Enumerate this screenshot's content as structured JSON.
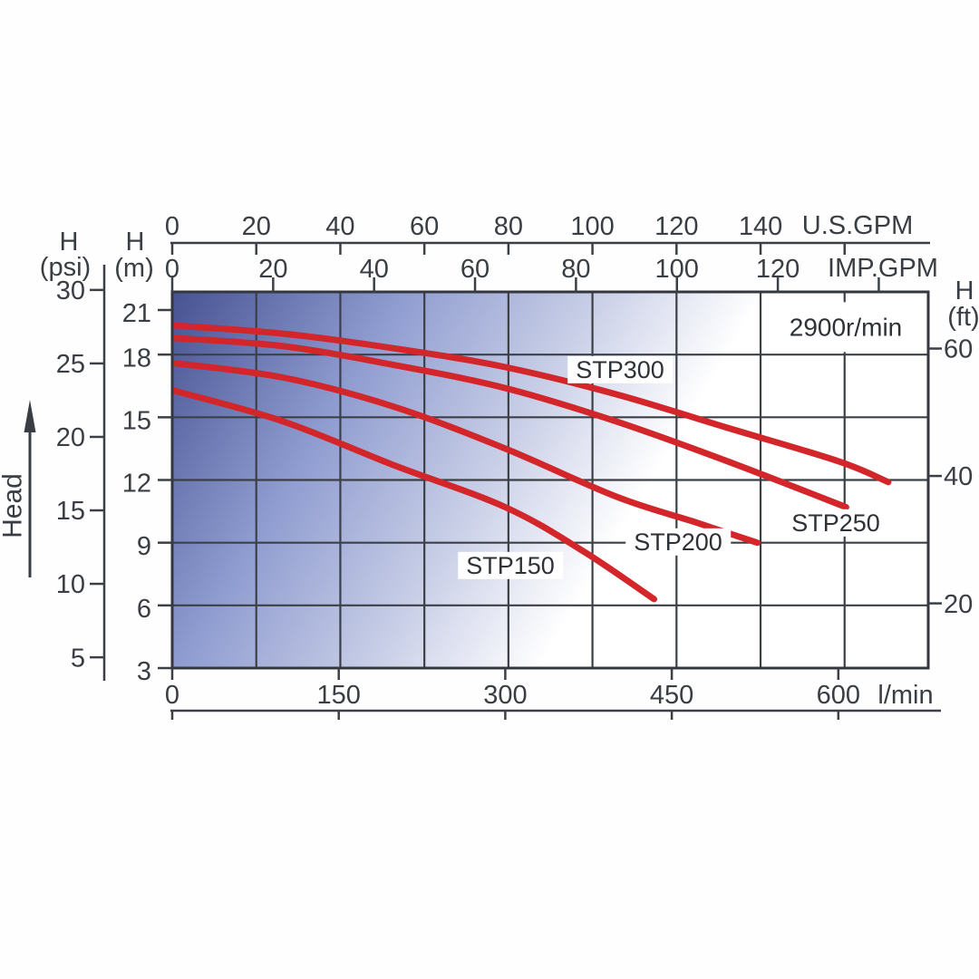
{
  "chart_data": {
    "type": "line",
    "annotations": [
      "2900r/min"
    ],
    "y_label": "Head",
    "grid": {
      "vertical_every_usgpm": 20,
      "horizontal_every_m": 3
    },
    "x_axes": [
      {
        "id": "us_gpm",
        "unit": "U.S.GPM",
        "position": "top",
        "ticks": [
          0,
          20,
          40,
          60,
          80,
          100,
          120,
          140
        ],
        "range": [
          0,
          180
        ]
      },
      {
        "id": "imp_gpm",
        "unit": "IMP.GPM",
        "position": "top",
        "ticks": [
          0,
          20,
          40,
          60,
          80,
          100,
          120
        ],
        "range": [
          0,
          150
        ]
      },
      {
        "id": "l_min",
        "unit": "l/min",
        "position": "bottom",
        "ticks": [
          0,
          150,
          300,
          450,
          600
        ],
        "range": [
          0,
          681
        ]
      }
    ],
    "y_axes": [
      {
        "id": "psi",
        "name": "H",
        "unit": "(psi)",
        "position": "left",
        "ticks": [
          30,
          25,
          20,
          15,
          10,
          5
        ]
      },
      {
        "id": "m",
        "name": "H",
        "unit": "(m)",
        "position": "left",
        "ticks": [
          21,
          18,
          15,
          12,
          9,
          6,
          3
        ],
        "range": [
          3,
          21
        ]
      },
      {
        "id": "ft",
        "name": "H",
        "unit": "(ft)",
        "position": "right",
        "ticks": [
          60,
          40,
          20
        ]
      }
    ],
    "series": [
      {
        "name": "STP150",
        "x_unit": "l/min",
        "y_unit": "m",
        "points": [
          [
            0,
            16.3
          ],
          [
            100,
            14.8
          ],
          [
            200,
            12.7
          ],
          [
            300,
            10.7
          ],
          [
            370,
            8.6
          ],
          [
            434,
            6.3
          ]
        ]
      },
      {
        "name": "STP200",
        "x_unit": "l/min",
        "y_unit": "m",
        "points": [
          [
            0,
            17.6
          ],
          [
            100,
            16.9
          ],
          [
            200,
            15.5
          ],
          [
            300,
            13.5
          ],
          [
            400,
            11.2
          ],
          [
            470,
            10.0
          ],
          [
            527,
            9.0
          ]
        ]
      },
      {
        "name": "STP250",
        "x_unit": "l/min",
        "y_unit": "m",
        "points": [
          [
            0,
            18.8
          ],
          [
            100,
            18.4
          ],
          [
            200,
            17.5
          ],
          [
            300,
            16.4
          ],
          [
            400,
            14.8
          ],
          [
            500,
            12.9
          ],
          [
            607,
            10.7
          ]
        ]
      },
      {
        "name": "STP300",
        "x_unit": "l/min",
        "y_unit": "m",
        "points": [
          [
            0,
            19.4
          ],
          [
            100,
            19.0
          ],
          [
            200,
            18.3
          ],
          [
            300,
            17.4
          ],
          [
            400,
            16.1
          ],
          [
            500,
            14.5
          ],
          [
            600,
            12.9
          ],
          [
            645,
            11.9
          ]
        ]
      }
    ]
  },
  "colors": {
    "curve": "#d2262b",
    "grid": "#3c4046",
    "border": "#34383e",
    "text": "#3a3e44",
    "plot_gradient": [
      "#475292",
      "#8f9cd0",
      "#c9cfe7",
      "#ffffff"
    ]
  }
}
